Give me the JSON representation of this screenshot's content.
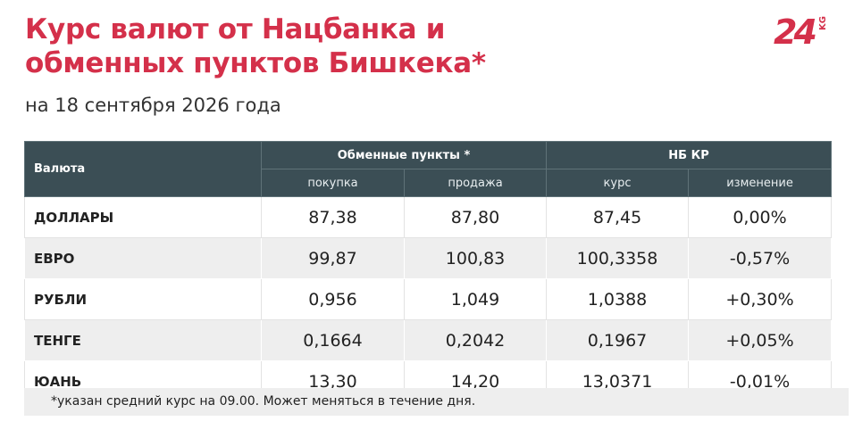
{
  "header": {
    "title": [
      "Курс валют от Нацбанка и",
      "обменных пунктов Бишкека*"
    ],
    "subtitle": "на 18 сентября 2026 года"
  },
  "logo": {
    "main": "24",
    "sub": "KG"
  },
  "table": {
    "currency_header": "Валюта",
    "groups": [
      "Обменные пункты *",
      "НБ КР"
    ],
    "columns": [
      "покупка",
      "продажа",
      "курс",
      "изменение"
    ],
    "rows": [
      [
        "ДОЛЛАРЫ",
        "87,38",
        "87,80",
        "87,45",
        "0,00%"
      ],
      [
        "ЕВРО",
        "99,87",
        "100,83",
        "100,3358",
        "-0,57%"
      ],
      [
        "РУБЛИ",
        "0,956",
        "1,049",
        "1,0388",
        "+0,30%"
      ],
      [
        "ТЕНГЕ",
        "0,1664",
        "0,2042",
        "0,1967",
        "+0,05%"
      ],
      [
        "ЮАНЬ",
        "13,30",
        "14,20",
        "13,0371",
        "-0,01%"
      ]
    ]
  },
  "footnote": "*указан средний курс на 09.00. Может меняться в течение дня."
}
